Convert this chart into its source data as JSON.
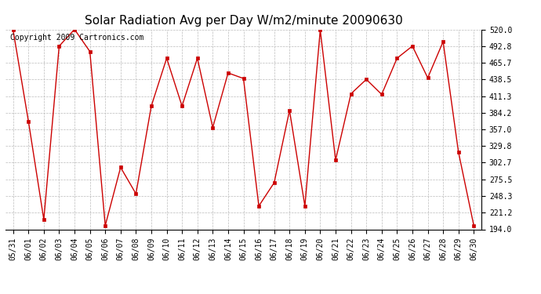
{
  "title": "Solar Radiation Avg per Day W/m2/minute 20090630",
  "copyright": "Copyright 2009 Cartronics.com",
  "dates": [
    "05/31",
    "06/01",
    "06/02",
    "06/03",
    "06/04",
    "06/05",
    "06/06",
    "06/07",
    "06/08",
    "06/09",
    "06/10",
    "06/11",
    "06/12",
    "06/13",
    "06/14",
    "06/15",
    "06/16",
    "06/17",
    "06/18",
    "06/19",
    "06/20",
    "06/21",
    "06/22",
    "06/23",
    "06/24",
    "06/25",
    "06/26",
    "06/27",
    "06/28",
    "06/29",
    "06/30"
  ],
  "values": [
    519.0,
    370.0,
    210.0,
    492.8,
    520.0,
    484.0,
    200.0,
    295.0,
    252.0,
    395.0,
    473.0,
    395.0,
    473.0,
    360.0,
    449.0,
    440.0,
    232.0,
    270.0,
    388.0,
    232.0,
    519.0,
    307.0,
    415.0,
    438.5,
    414.0,
    473.0,
    492.8,
    441.0,
    500.0,
    320.0,
    200.0
  ],
  "ylim": [
    194.0,
    520.0
  ],
  "yticks": [
    194.0,
    221.2,
    248.3,
    275.5,
    302.7,
    329.8,
    357.0,
    384.2,
    411.3,
    438.5,
    465.7,
    492.8,
    520.0
  ],
  "ytick_labels": [
    "194.0",
    "221.2",
    "248.3",
    "275.5",
    "302.7",
    "329.8",
    "357.0",
    "384.2",
    "411.3",
    "438.5",
    "465.7",
    "492.8",
    "520.0"
  ],
  "line_color": "#cc0000",
  "marker_color": "#000000",
  "marker_size": 3,
  "bg_color": "#ffffff",
  "grid_color": "#bbbbbb",
  "title_fontsize": 11,
  "tick_fontsize": 7,
  "copyright_fontsize": 7
}
